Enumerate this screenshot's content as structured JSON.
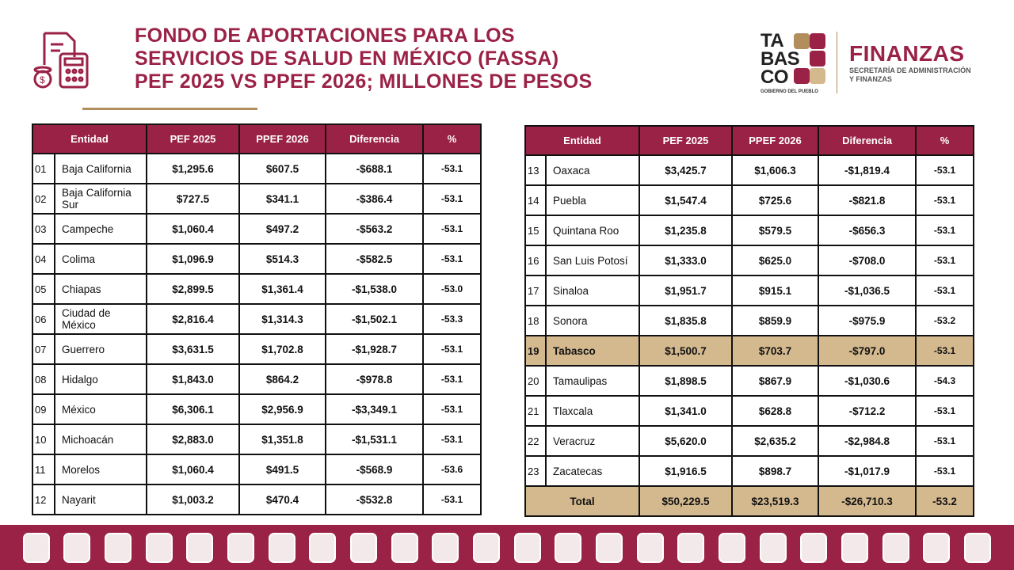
{
  "header": {
    "title_lines": [
      "FONDO DE APORTACIONES PARA LOS",
      "SERVICIOS DE SALUD EN MÉXICO (FASSA)",
      "PEF 2025 VS PPEF 2026; MILLONES DE PESOS"
    ]
  },
  "logo": {
    "tabasco": [
      "TA",
      "BAS",
      "CO"
    ],
    "gobierno": "GOBIERNO DEL PUEBLO",
    "finanzas": "FINANZAS",
    "secretaria": [
      "SECRETARÍA DE ADMINISTRACIÓN",
      "Y FINANZAS"
    ]
  },
  "columns": [
    "Entidad",
    "PEF 2025",
    "PPEF 2026",
    "Diferencia",
    "%"
  ],
  "table_left": [
    [
      "01",
      "Baja California",
      "$1,295.6",
      "$607.5",
      "-$688.1",
      "-53.1"
    ],
    [
      "02",
      "Baja California Sur",
      "$727.5",
      "$341.1",
      "-$386.4",
      "-53.1"
    ],
    [
      "03",
      "Campeche",
      "$1,060.4",
      "$497.2",
      "-$563.2",
      "-53.1"
    ],
    [
      "04",
      "Colima",
      "$1,096.9",
      "$514.3",
      "-$582.5",
      "-53.1"
    ],
    [
      "05",
      "Chiapas",
      "$2,899.5",
      "$1,361.4",
      "-$1,538.0",
      "-53.0"
    ],
    [
      "06",
      "Ciudad de México",
      "$2,816.4",
      "$1,314.3",
      "-$1,502.1",
      "-53.3"
    ],
    [
      "07",
      "Guerrero",
      "$3,631.5",
      "$1,702.8",
      "-$1,928.7",
      "-53.1"
    ],
    [
      "08",
      "Hidalgo",
      "$1,843.0",
      "$864.2",
      "-$978.8",
      "-53.1"
    ],
    [
      "09",
      "México",
      "$6,306.1",
      "$2,956.9",
      "-$3,349.1",
      "-53.1"
    ],
    [
      "10",
      "Michoacán",
      "$2,883.0",
      "$1,351.8",
      "-$1,531.1",
      "-53.1"
    ],
    [
      "11",
      "Morelos",
      "$1,060.4",
      "$491.5",
      "-$568.9",
      "-53.6"
    ],
    [
      "12",
      "Nayarit",
      "$1,003.2",
      "$470.4",
      "-$532.8",
      "-53.1"
    ]
  ],
  "table_right": [
    [
      "13",
      "Oaxaca",
      "$3,425.7",
      "$1,606.3",
      "-$1,819.4",
      "-53.1"
    ],
    [
      "14",
      "Puebla",
      "$1,547.4",
      "$725.6",
      "-$821.8",
      "-53.1"
    ],
    [
      "15",
      "Quintana Roo",
      "$1,235.8",
      "$579.5",
      "-$656.3",
      "-53.1"
    ],
    [
      "16",
      "San Luis Potosí",
      "$1,333.0",
      "$625.0",
      "-$708.0",
      "-53.1"
    ],
    [
      "17",
      "Sinaloa",
      "$1,951.7",
      "$915.1",
      "-$1,036.5",
      "-53.1"
    ],
    [
      "18",
      "Sonora",
      "$1,835.8",
      "$859.9",
      "-$975.9",
      "-53.2"
    ],
    [
      "19",
      "Tabasco",
      "$1,500.7",
      "$703.7",
      "-$797.0",
      "-53.1"
    ],
    [
      "20",
      "Tamaulipas",
      "$1,898.5",
      "$867.9",
      "-$1,030.6",
      "-54.3"
    ],
    [
      "21",
      "Tlaxcala",
      "$1,341.0",
      "$628.8",
      "-$712.2",
      "-53.1"
    ],
    [
      "22",
      "Veracruz",
      "$5,620.0",
      "$2,635.2",
      "-$2,984.8",
      "-53.1"
    ],
    [
      "23",
      "Zacatecas",
      "$1,916.5",
      "$898.7",
      "-$1,017.9",
      "-53.1"
    ]
  ],
  "highlight_row": "19",
  "total": [
    "Total",
    "$50,229.5",
    "$23,519.3",
    "-$26,710.3",
    "-53.2"
  ],
  "colors": {
    "brand": "#9b2247",
    "gold": "#b38e5d",
    "highlight": "#d4b98f"
  }
}
